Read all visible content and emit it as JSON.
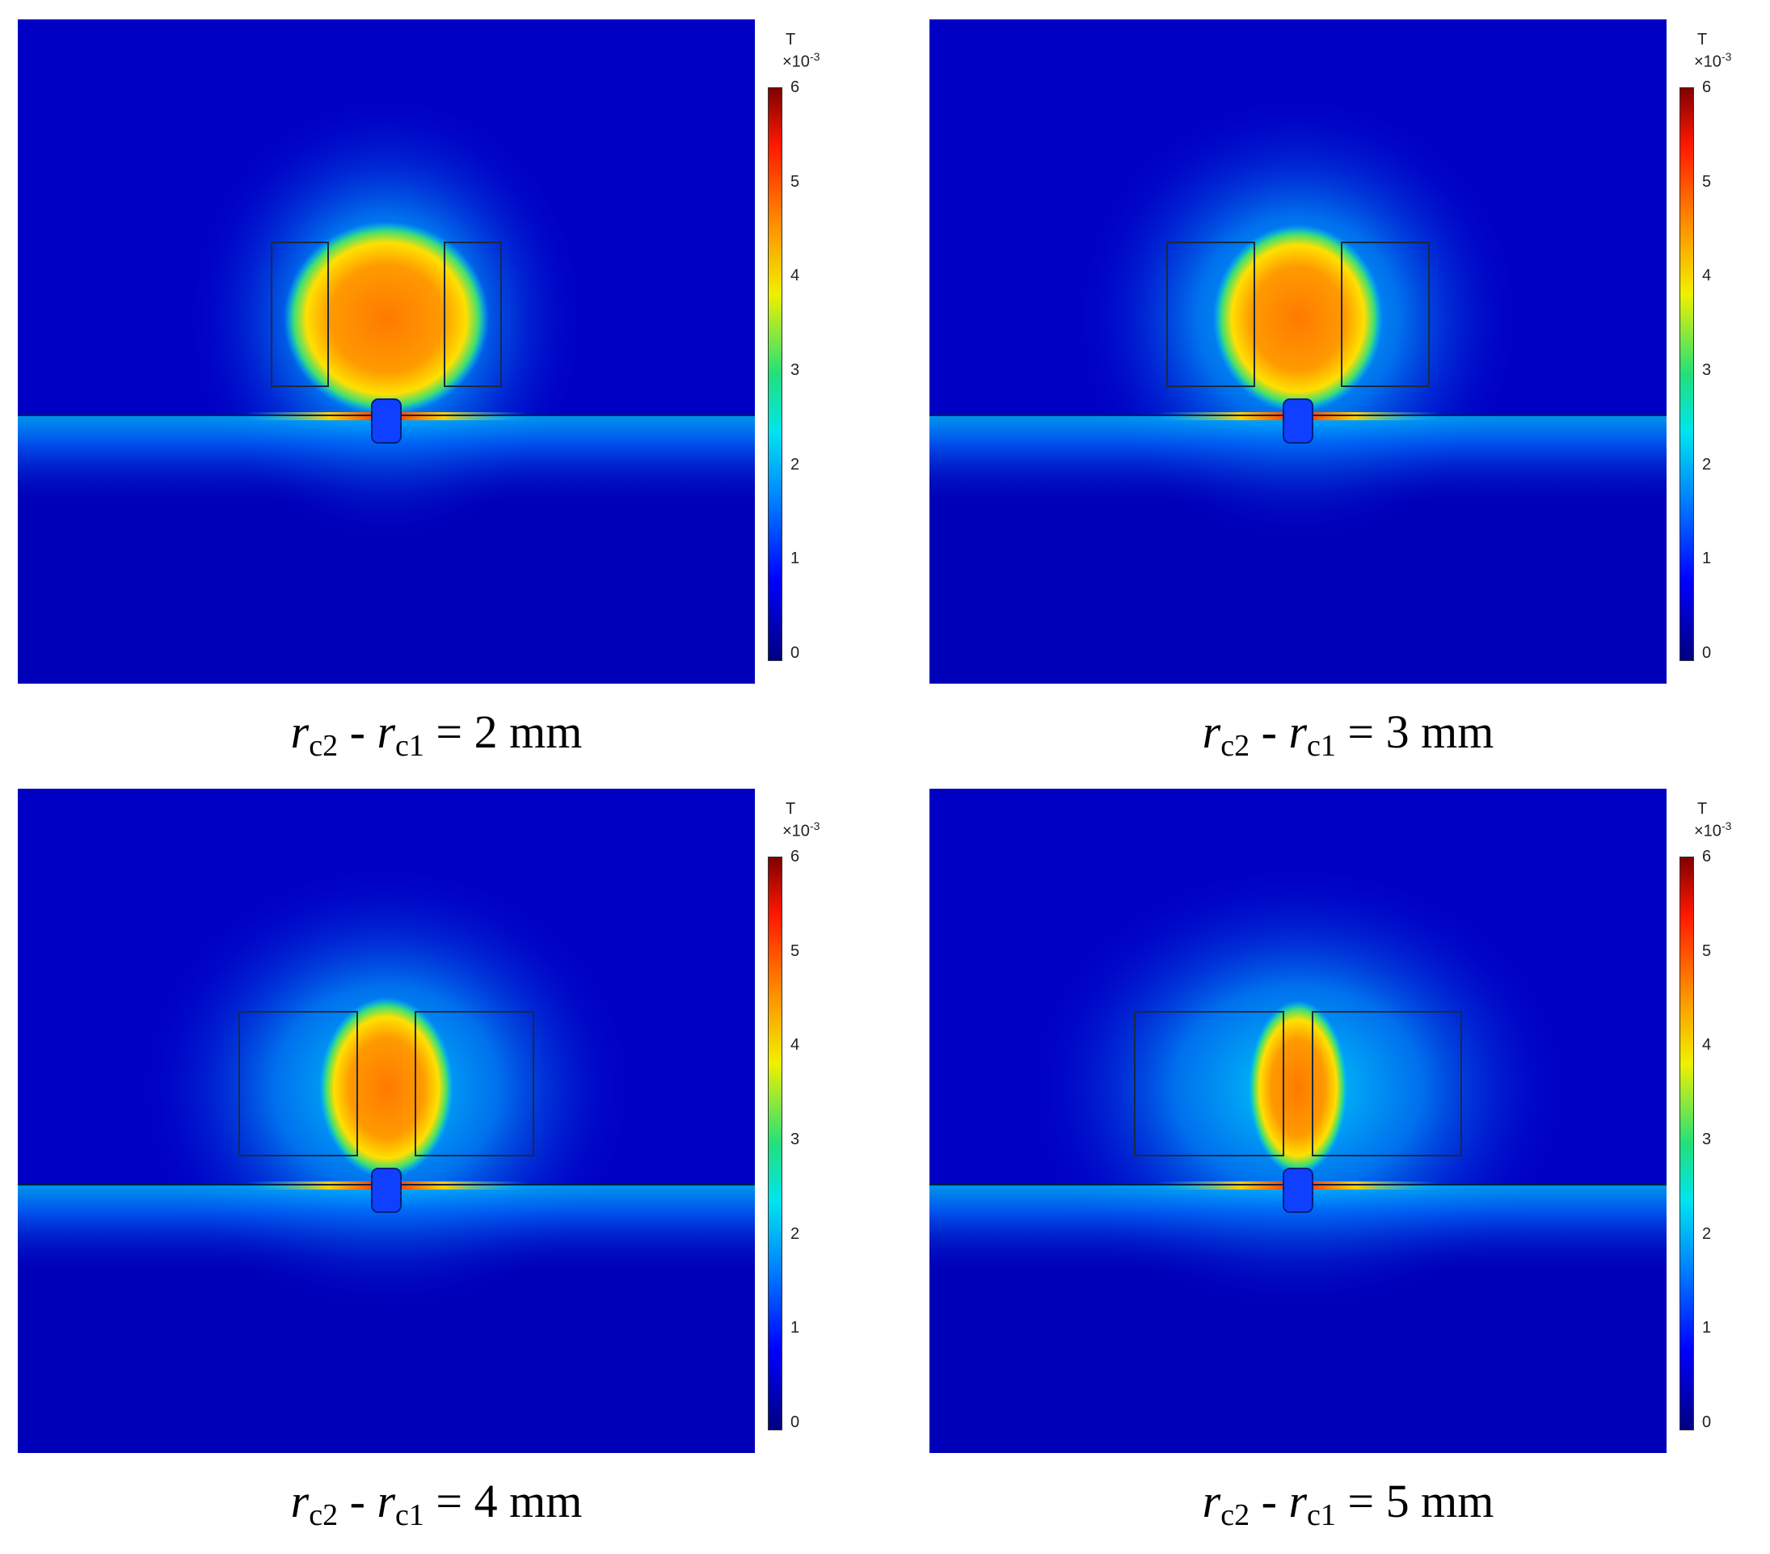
{
  "colorbar": {
    "unit": "T",
    "exponent_base": "×10",
    "exponent": "-3",
    "ticks": [
      "0",
      "1",
      "2",
      "3",
      "4",
      "5",
      "6"
    ]
  },
  "panels": [
    {
      "id": "p1",
      "caption": {
        "r": "r",
        "sub2": "c2",
        "minus": " - ",
        "sub1": "c1",
        "value": " = 2 mm"
      },
      "gap_mm": 2
    },
    {
      "id": "p2",
      "caption": {
        "r": "r",
        "sub2": "c2",
        "minus": " - ",
        "sub1": "c1",
        "value": " = 3 mm"
      },
      "gap_mm": 3
    },
    {
      "id": "p3",
      "caption": {
        "r": "r",
        "sub2": "c2",
        "minus": " - ",
        "sub1": "c1",
        "value": " = 4 mm"
      },
      "gap_mm": 4
    },
    {
      "id": "p4",
      "caption": {
        "r": "r",
        "sub2": "c2",
        "minus": " - ",
        "sub1": "c1",
        "value": " = 5 mm"
      },
      "gap_mm": 5
    }
  ]
}
